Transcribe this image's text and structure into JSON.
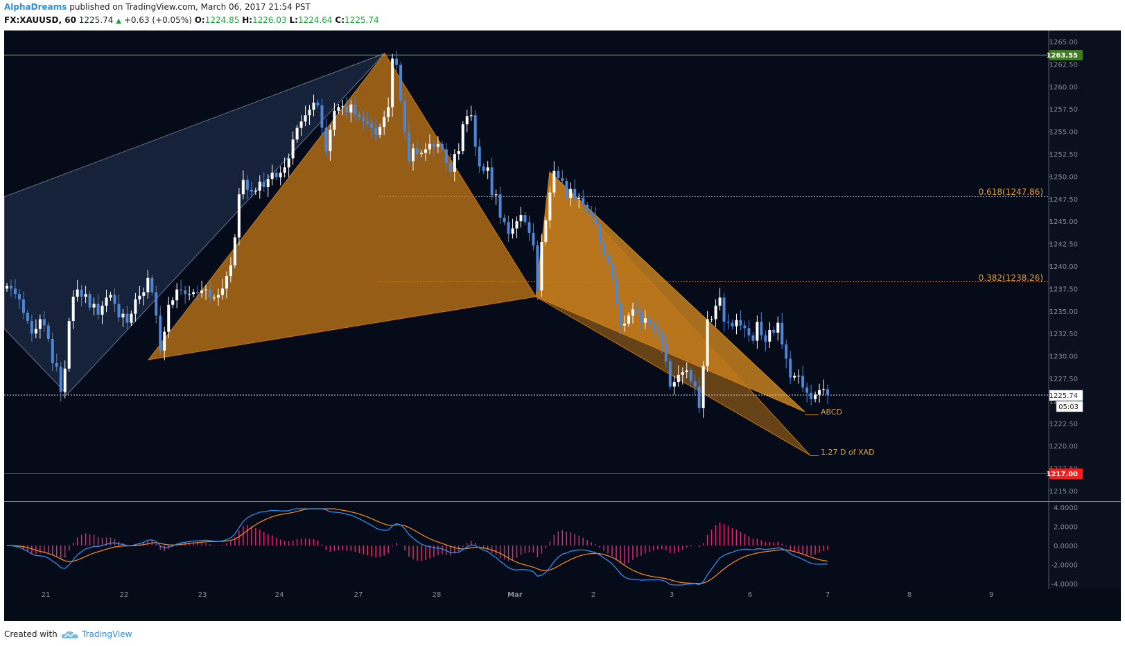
{
  "header": {
    "author": "AlphaDreams",
    "published": "published on TradingView.com, March 06, 2017 21:54 PST",
    "symbol": "FX:XAUUSD, 60",
    "last": "1225.74",
    "change": "+0.63 (+0.05%)",
    "open_label": "O:",
    "open": "1224.85",
    "high_label": "H:",
    "high": "1226.03",
    "low_label": "L:",
    "low": "1224.64",
    "close_label": "C:",
    "close": "1225.74"
  },
  "footer": {
    "created_with": "Created with",
    "brand": "TradingView"
  },
  "colors": {
    "background": "#050b18",
    "bull": "#ffffff",
    "bear": "#4e86d6",
    "pattern_orange": "#c77a16",
    "pattern_blue": "#1c2a45",
    "resistance": "#8dbb3c",
    "support": "#ff2020",
    "macd": "#2f8ff0",
    "signal": "#f0861f",
    "hist": "#e0286e"
  },
  "chart_data": {
    "type": "candlestick",
    "ylim": [
      1213.5,
      1266.5
    ],
    "y_ticks": [
      "1265.00",
      "1262.50",
      "1260.00",
      "1257.50",
      "1255.00",
      "1252.50",
      "1250.00",
      "1247.50",
      "1245.00",
      "1242.50",
      "1240.00",
      "1237.50",
      "1235.00",
      "1232.50",
      "1230.00",
      "1227.50",
      "1225.00",
      "1222.50",
      "1220.00",
      "1217.50",
      "1215.00"
    ],
    "x_ticks": [
      "21",
      "22",
      "23",
      "24",
      "27",
      "28",
      "Mar",
      "2",
      "3",
      "6",
      "7",
      "8",
      "9"
    ],
    "price_labels": {
      "resistance": {
        "value": 1263.55,
        "text": "1263.55"
      },
      "support": {
        "value": 1217.0,
        "text": "1217.00"
      },
      "current": {
        "value": 1225.74,
        "text": "1225.74",
        "countdown": "05:03"
      }
    },
    "fib_levels": [
      {
        "value": 1247.86,
        "text": "0.618(1247.86)"
      },
      {
        "value": 1238.26,
        "text": "0.382(1238.26)"
      }
    ],
    "annotations": [
      {
        "text": "ABCD",
        "value": 1224.0
      },
      {
        "text": "1.27 D of XAD",
        "value": 1219.5
      }
    ],
    "candles_close": [
      1237.8,
      1237.5,
      1236.9,
      1236.3,
      1234.8,
      1233.9,
      1232.5,
      1233.0,
      1234.1,
      1233.4,
      1231.9,
      1229.2,
      1228.8,
      1226.0,
      1228.6,
      1233.9,
      1236.6,
      1237.4,
      1236.6,
      1236.9,
      1235.4,
      1235.8,
      1234.6,
      1235.6,
      1236.5,
      1236.8,
      1235.8,
      1234.3,
      1234.7,
      1233.7,
      1234.7,
      1236.3,
      1236.7,
      1237.1,
      1238.7,
      1237.1,
      1234.5,
      1230.6,
      1232.7,
      1235.7,
      1236.2,
      1237.4,
      1237.3,
      1236.9,
      1236.9,
      1237.1,
      1237.0,
      1237.3,
      1237.4,
      1236.5,
      1236.5,
      1236.8,
      1237.5,
      1238.9,
      1240.1,
      1243.2,
      1248.0,
      1249.6,
      1248.5,
      1248.3,
      1248.4,
      1249.4,
      1248.8,
      1249.7,
      1250.4,
      1249.9,
      1250.4,
      1251.0,
      1252.0,
      1254.1,
      1255.4,
      1256.1,
      1256.8,
      1257.4,
      1258.2,
      1257.9,
      1255.4,
      1252.8,
      1255.2,
      1257.3,
      1257.7,
      1257.8,
      1257.1,
      1258.0,
      1256.9,
      1256.6,
      1256.1,
      1255.9,
      1255.4,
      1254.6,
      1255.5,
      1256.6,
      1257.7,
      1263.1,
      1262.4,
      1258.4,
      1254.9,
      1251.7,
      1253.1,
      1252.5,
      1252.6,
      1253.0,
      1253.6,
      1253.3,
      1253.6,
      1253.0,
      1251.5,
      1250.5,
      1252.5,
      1252.8,
      1255.8,
      1256.7,
      1256.8,
      1253.3,
      1251.1,
      1250.6,
      1251.0,
      1247.9,
      1248.0,
      1245.4,
      1244.9,
      1243.6,
      1244.2,
      1245.0,
      1245.7,
      1244.9,
      1243.7,
      1242.3,
      1237.3,
      1242.7,
      1245.1,
      1248.2,
      1250.6,
      1249.8,
      1249.5,
      1247.6,
      1248.6,
      1247.5,
      1247.6,
      1246.8,
      1246.0,
      1245.5,
      1244.7,
      1242.7,
      1241.3,
      1240.4,
      1238.7,
      1235.9,
      1233.4,
      1233.6,
      1234.5,
      1235.2,
      1235.0,
      1233.7,
      1234.2,
      1233.5,
      1233.0,
      1232.6,
      1231.4,
      1229.4,
      1226.6,
      1227.1,
      1227.9,
      1228.2,
      1228.4,
      1227.2,
      1226.6,
      1224.2,
      1228.9,
      1234.1,
      1234.1,
      1235.6,
      1236.5,
      1233.8,
      1233.7,
      1233.3,
      1234.0,
      1233.4,
      1233.1,
      1232.3,
      1231.7,
      1233.8,
      1232.3,
      1231.6,
      1232.9,
      1232.6,
      1233.7,
      1231.3,
      1229.7,
      1227.6,
      1227.8,
      1227.8,
      1226.5,
      1225.9,
      1225.2,
      1225.7,
      1226.2,
      1226.3,
      1225.7
    ]
  },
  "macd": {
    "y_ticks": [
      "4.0000",
      "2.0000",
      "0.0000",
      "-2.0000",
      "-4.0000"
    ]
  }
}
